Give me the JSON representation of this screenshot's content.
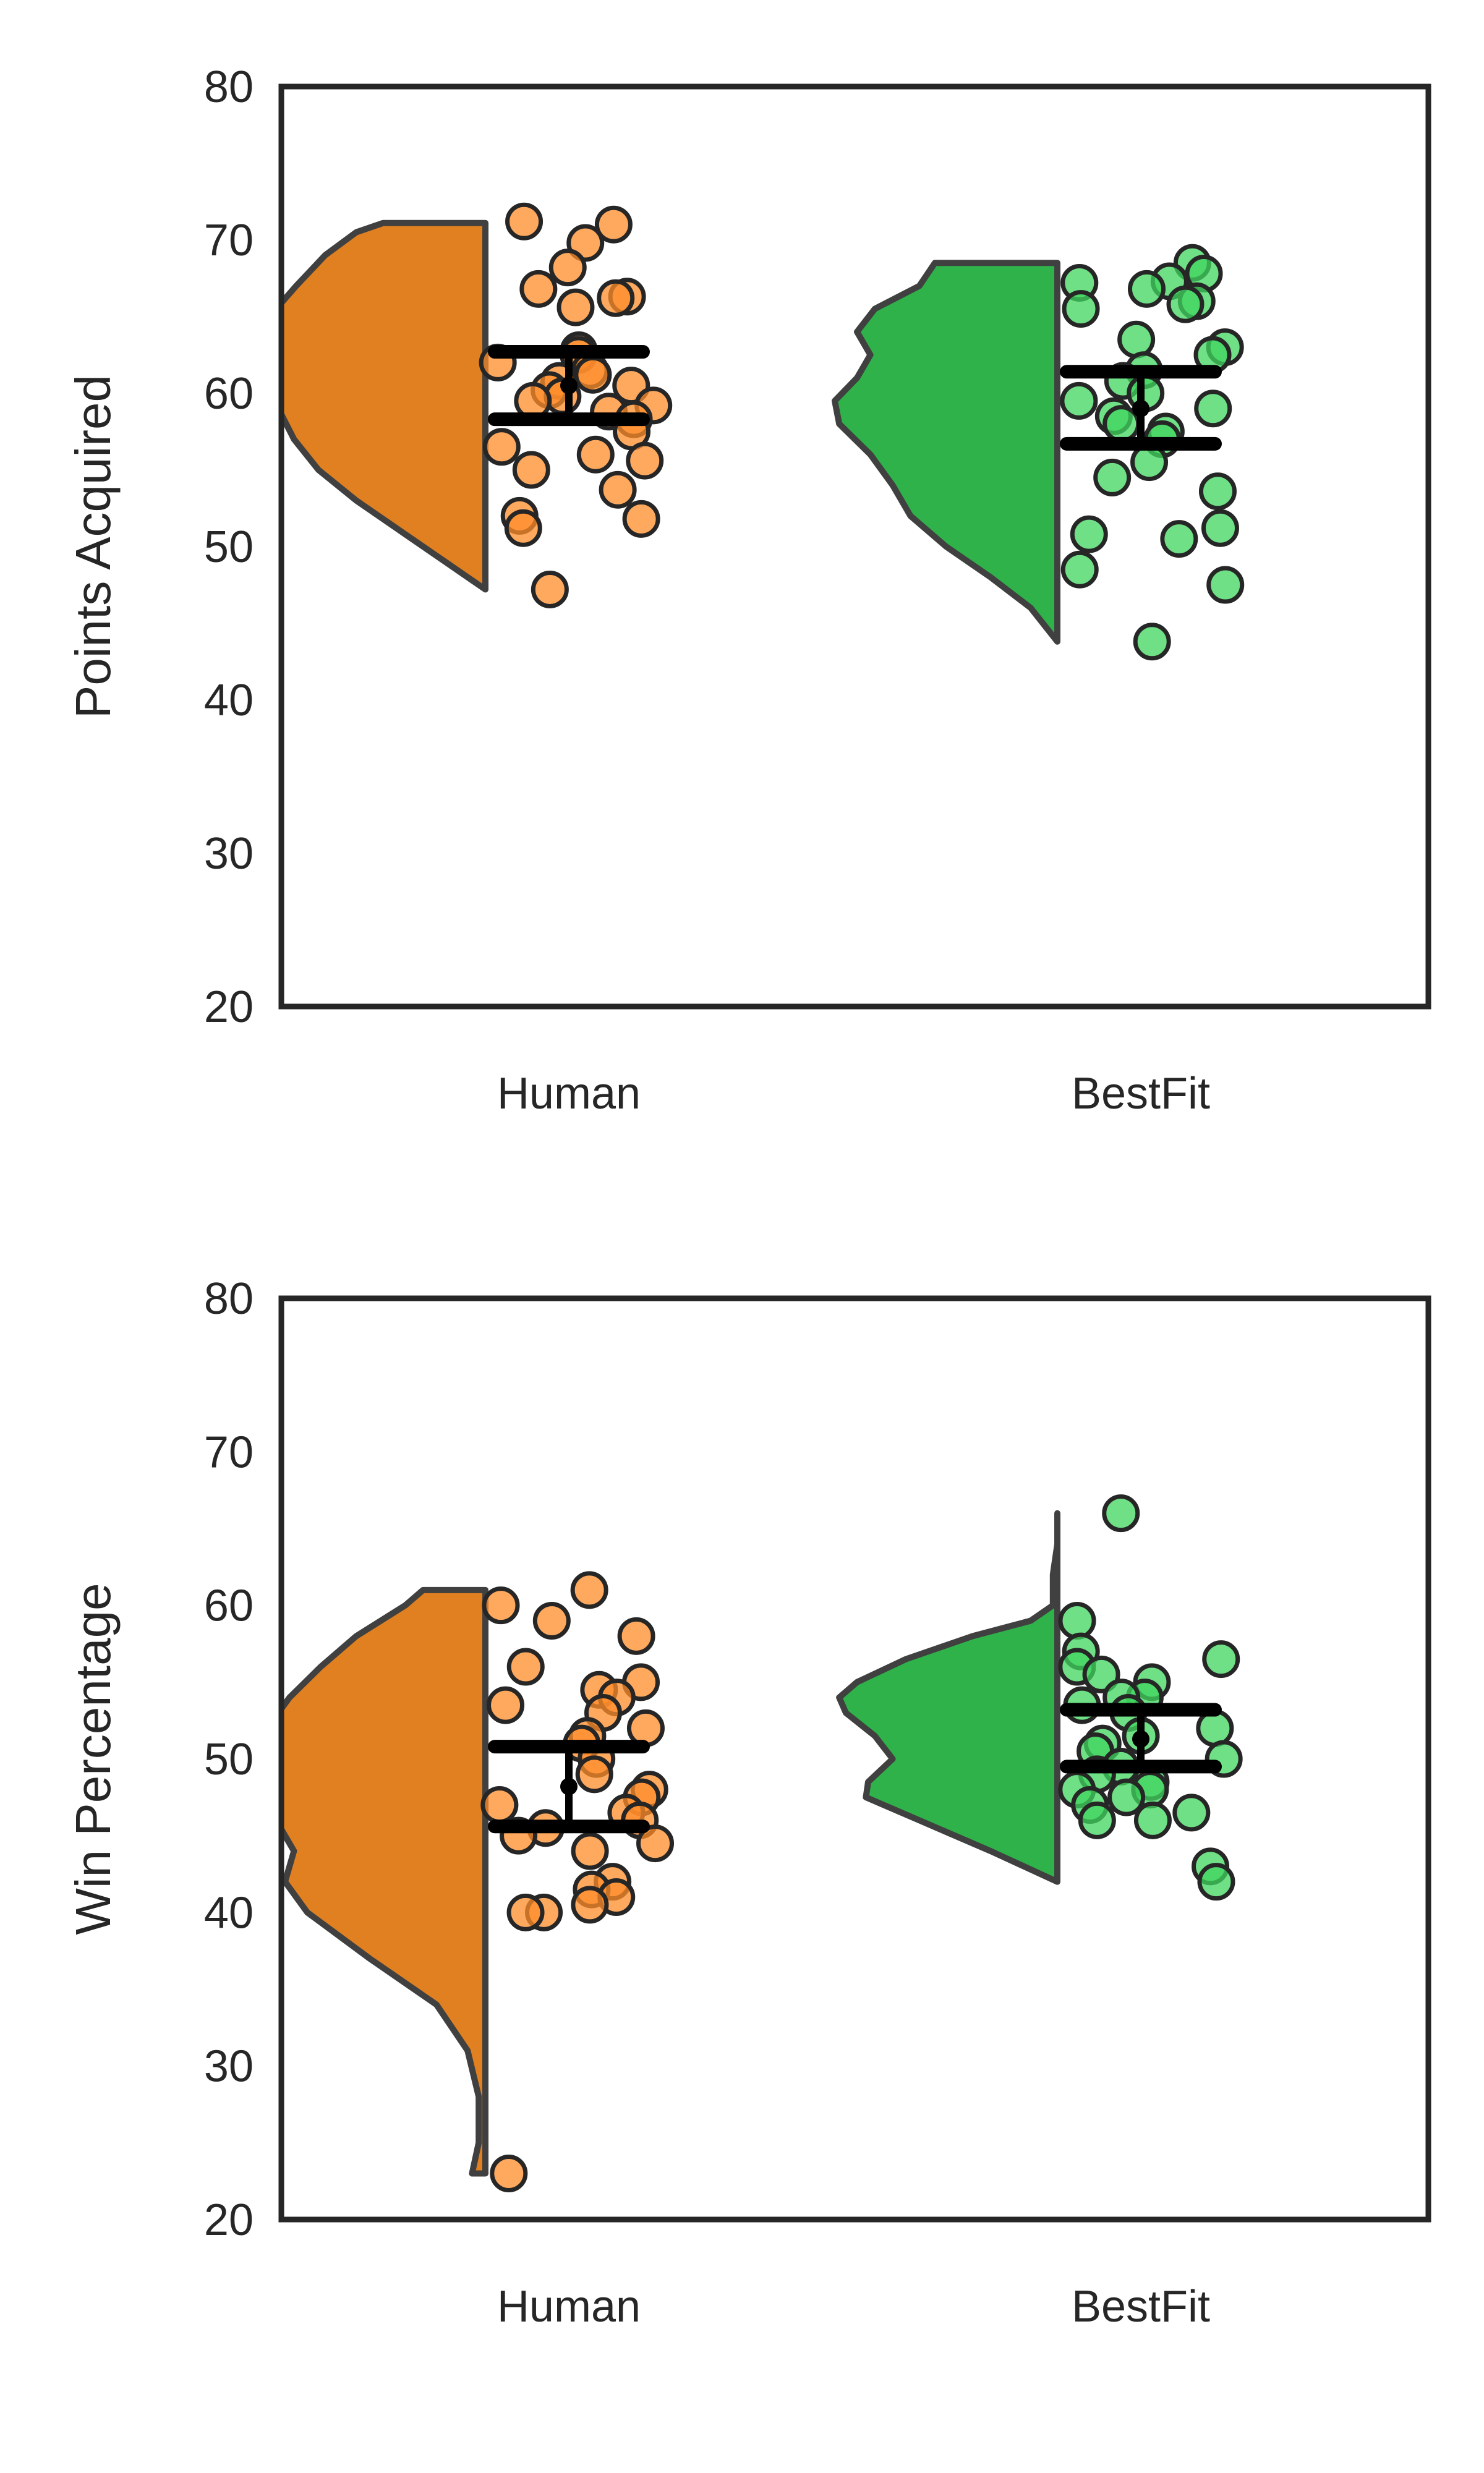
{
  "chart_data": [
    {
      "type": "raincloud",
      "title": "",
      "xlabel": "",
      "ylabel": "Points Acquired",
      "ylim": [
        20,
        80
      ],
      "yticks": [
        20,
        30,
        40,
        50,
        60,
        70,
        80
      ],
      "categories": [
        "Human",
        "BestFit"
      ],
      "grid": false,
      "colors": {
        "Human": {
          "violin": "#e08020",
          "points": "#ff8c2a"
        },
        "BestFit": {
          "violin": "#2fb24a",
          "points": "#3fd65e"
        }
      },
      "series": [
        {
          "category": "Human",
          "violin": {
            "min": 47.2,
            "max": 71.1,
            "density": [
              [
                47.2,
                0.0
              ],
              [
                49,
                0.18
              ],
              [
                51,
                0.38
              ],
              [
                53,
                0.58
              ],
              [
                55,
                0.75
              ],
              [
                57,
                0.86
              ],
              [
                59,
                0.93
              ],
              [
                61,
                0.98
              ],
              [
                63,
                1.0
              ],
              [
                65,
                0.97
              ],
              [
                67,
                0.85
              ],
              [
                69,
                0.72
              ],
              [
                70.5,
                0.58
              ],
              [
                71.1,
                0.46
              ]
            ]
          },
          "points": [
            71.2,
            71.0,
            69.8,
            68.2,
            66.8,
            66.3,
            66.2,
            65.6,
            62.8,
            62.5,
            62.0,
            61.5,
            61.2,
            60.8,
            60.5,
            60.2,
            59.8,
            59.5,
            59.2,
            58.8,
            58.3,
            57.5,
            56.5,
            56.0,
            55.6,
            55.0,
            53.7,
            52.0,
            51.8,
            51.2,
            47.2
          ],
          "mean": 60.5,
          "ci": [
            58.3,
            62.7
          ]
        },
        {
          "category": "BestFit",
          "violin": {
            "min": 43.8,
            "max": 68.5,
            "density": [
              [
                43.8,
                0.0
              ],
              [
                46,
                0.12
              ],
              [
                48,
                0.3
              ],
              [
                50,
                0.5
              ],
              [
                52,
                0.66
              ],
              [
                54,
                0.74
              ],
              [
                56,
                0.84
              ],
              [
                58,
                0.98
              ],
              [
                59.5,
                1.0
              ],
              [
                61,
                0.9
              ],
              [
                62.5,
                0.84
              ],
              [
                64,
                0.9
              ],
              [
                65.5,
                0.82
              ],
              [
                67,
                0.62
              ],
              [
                68.5,
                0.55
              ]
            ]
          },
          "points": [
            68.5,
            67.8,
            67.3,
            67.2,
            66.8,
            66.0,
            65.8,
            65.5,
            63.5,
            63.0,
            62.5,
            61.5,
            60.8,
            60.0,
            59.5,
            59.0,
            58.5,
            58.0,
            57.5,
            57.0,
            55.5,
            54.5,
            53.6,
            51.2,
            50.8,
            50.5,
            48.5,
            47.5,
            43.8
          ],
          "mean": 59.0,
          "ci": [
            56.7,
            61.4
          ]
        }
      ]
    },
    {
      "type": "raincloud",
      "title": "",
      "xlabel": "",
      "ylabel": "Win Percentage",
      "ylim": [
        20,
        80
      ],
      "yticks": [
        20,
        30,
        40,
        50,
        60,
        70,
        80
      ],
      "categories": [
        "Human",
        "BestFit"
      ],
      "grid": false,
      "colors": {
        "Human": {
          "violin": "#e08020",
          "points": "#ff8c2a"
        },
        "BestFit": {
          "violin": "#2fb24a",
          "points": "#3fd65e"
        }
      },
      "series": [
        {
          "category": "Human",
          "violin": {
            "min": 23,
            "max": 61,
            "density": [
              [
                23,
                0.06
              ],
              [
                25,
                0.03
              ],
              [
                28,
                0.03
              ],
              [
                31,
                0.08
              ],
              [
                34,
                0.22
              ],
              [
                37,
                0.52
              ],
              [
                40,
                0.8
              ],
              [
                42,
                0.9
              ],
              [
                44,
                0.86
              ],
              [
                46,
                0.94
              ],
              [
                48,
                1.0
              ],
              [
                50,
                1.0
              ],
              [
                52,
                0.98
              ],
              [
                54,
                0.88
              ],
              [
                56,
                0.74
              ],
              [
                58,
                0.58
              ],
              [
                60,
                0.36
              ],
              [
                61,
                0.28
              ]
            ]
          },
          "points": [
            61,
            60,
            59,
            58,
            56,
            55,
            54.5,
            54,
            53.5,
            53,
            52,
            51.5,
            51,
            50,
            49,
            48,
            47.5,
            47,
            46.5,
            46,
            45.5,
            45,
            44.5,
            44,
            42,
            41.5,
            41,
            40.5,
            40,
            40,
            23
          ],
          "mean": 48.2,
          "ci": [
            45.6,
            50.8
          ]
        },
        {
          "category": "BestFit",
          "violin": {
            "min": 42,
            "max": 66,
            "density": [
              [
                42,
                0.0
              ],
              [
                44,
                0.3
              ],
              [
                46,
                0.62
              ],
              [
                47.5,
                0.86
              ],
              [
                48.5,
                0.85
              ],
              [
                50,
                0.74
              ],
              [
                51.5,
                0.82
              ],
              [
                53,
                0.95
              ],
              [
                54,
                0.98
              ],
              [
                55,
                0.9
              ],
              [
                56.5,
                0.68
              ],
              [
                58,
                0.38
              ],
              [
                59,
                0.12
              ],
              [
                60,
                0.02
              ],
              [
                62,
                0.02
              ],
              [
                64,
                0.0
              ],
              [
                66,
                0.0
              ]
            ]
          },
          "points": [
            66,
            59,
            57,
            56.5,
            56,
            55.5,
            55,
            54,
            54,
            53.5,
            53,
            52,
            51.5,
            51,
            50.5,
            50,
            49.5,
            49,
            48.5,
            48,
            48,
            47.5,
            47,
            46.5,
            46,
            46,
            43,
            42
          ],
          "mean": 51.3,
          "ci": [
            49.5,
            53.2
          ]
        }
      ]
    }
  ]
}
